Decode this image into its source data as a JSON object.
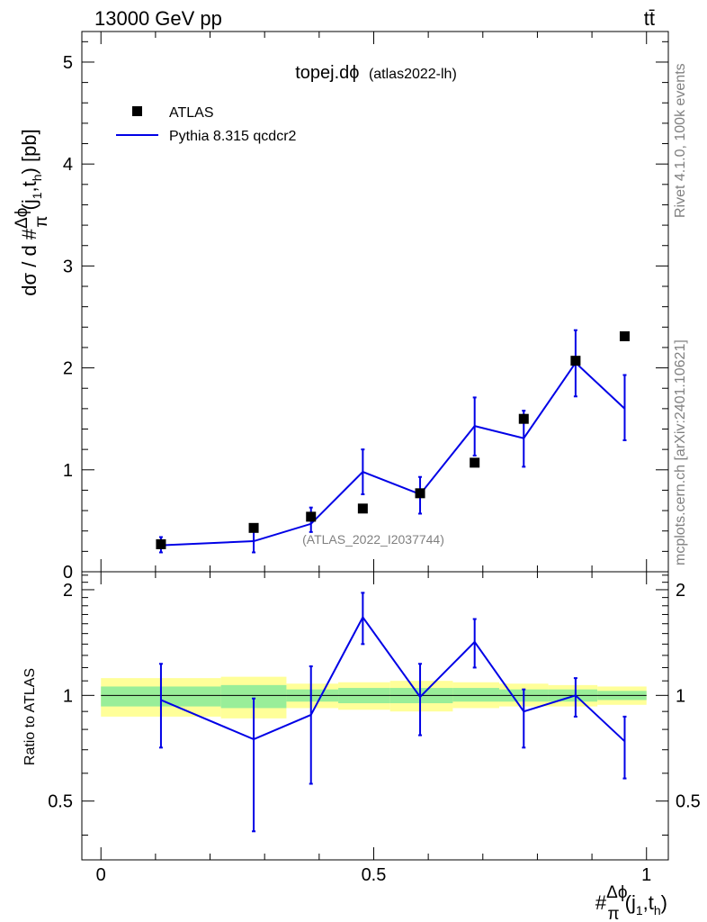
{
  "header": {
    "left": "13000 GeV pp",
    "right": "tt̄"
  },
  "side_labels": {
    "rivet": "Rivet 4.1.0,  100k events",
    "mcplots": "mcplots.cern.ch [arXiv:2401.10621]"
  },
  "chart_data": [
    {
      "type": "scatter",
      "title": "topej.dϕ",
      "subtitle": "(atlas2022-lh)",
      "watermark": "(ATLAS_2022_I2037744)",
      "ylabel": {
        "prefix": "dσ / d #",
        "frac_num": "Δϕ",
        "frac_den": "π",
        "suffix": "(j",
        "sub1": "1",
        "mid": ",t",
        "sub2": "h",
        "end": ") [pb]"
      },
      "xlim": [
        -0.035,
        1.04
      ],
      "ylim": [
        0,
        5.3
      ],
      "yticks": [
        0,
        1,
        2,
        3,
        4,
        5
      ],
      "ytick_labels": [
        "0",
        "1",
        "2",
        "3",
        "4",
        "5"
      ],
      "legend": {
        "placement": "top-left",
        "entries": [
          {
            "label": "ATLAS",
            "marker": "square",
            "color": "#000000"
          },
          {
            "label": "Pythia 8.315 qcdcr2",
            "marker": "line",
            "color": "#0000e6"
          }
        ]
      },
      "series": [
        {
          "name": "ATLAS",
          "x": [
            0.11,
            0.28,
            0.385,
            0.48,
            0.585,
            0.685,
            0.775,
            0.87,
            0.96
          ],
          "values": [
            0.27,
            0.43,
            0.54,
            0.62,
            0.77,
            1.07,
            1.5,
            2.07,
            2.31
          ]
        },
        {
          "name": "Pythia 8.315 qcdcr2",
          "x": [
            0.11,
            0.28,
            0.385,
            0.48,
            0.585,
            0.685,
            0.775,
            0.87,
            0.96
          ],
          "values": [
            0.26,
            0.3,
            0.47,
            0.98,
            0.76,
            1.43,
            1.31,
            2.05,
            1.6
          ],
          "err_low": [
            0.07,
            0.11,
            0.08,
            0.22,
            0.19,
            0.29,
            0.28,
            0.33,
            0.31
          ],
          "err_high": [
            0.08,
            0.11,
            0.16,
            0.22,
            0.17,
            0.28,
            0.27,
            0.32,
            0.33
          ]
        }
      ]
    },
    {
      "type": "line",
      "ylabel": "Ratio to ATLAS",
      "xlabel": {
        "prefix": "#",
        "frac_num": "Δϕ",
        "frac_den": "π",
        "suffix": "(j",
        "sub1": "1",
        "mid": ",t",
        "sub2": "h",
        "end": ")"
      },
      "xlim": [
        -0.035,
        1.04
      ],
      "ylim": [
        0.34,
        2.25
      ],
      "xticks": [
        0,
        0.5,
        1
      ],
      "xtick_labels": [
        "0",
        "0.5",
        "1"
      ],
      "yticks": [
        0.5,
        1,
        2
      ],
      "ytick_labels": [
        "0.5",
        "1",
        "2"
      ],
      "reference_line": 1,
      "bands": {
        "edges": [
          0,
          0.22,
          0.34,
          0.435,
          0.53,
          0.645,
          0.73,
          0.82,
          0.91,
          1.0
        ],
        "yellow_low": [
          0.87,
          0.86,
          0.92,
          0.91,
          0.9,
          0.92,
          0.93,
          0.93,
          0.94
        ],
        "yellow_high": [
          1.12,
          1.13,
          1.08,
          1.09,
          1.1,
          1.09,
          1.08,
          1.07,
          1.06
        ],
        "green_low": [
          0.93,
          0.92,
          0.96,
          0.95,
          0.95,
          0.96,
          0.96,
          0.96,
          0.97
        ],
        "green_high": [
          1.06,
          1.07,
          1.04,
          1.05,
          1.05,
          1.05,
          1.04,
          1.04,
          1.03
        ]
      },
      "series": [
        {
          "name": "Pythia 8.315 qcdcr2",
          "x": [
            0.11,
            0.28,
            0.385,
            0.48,
            0.585,
            0.685,
            0.775,
            0.87,
            0.96
          ],
          "values": [
            0.97,
            0.75,
            0.88,
            1.67,
            0.99,
            1.42,
            0.9,
            1.0,
            0.74
          ],
          "err_low": [
            0.26,
            0.34,
            0.32,
            0.27,
            0.22,
            0.22,
            0.19,
            0.13,
            0.16
          ],
          "err_high": [
            0.26,
            0.23,
            0.33,
            0.29,
            0.24,
            0.23,
            0.14,
            0.12,
            0.13
          ]
        }
      ]
    }
  ]
}
